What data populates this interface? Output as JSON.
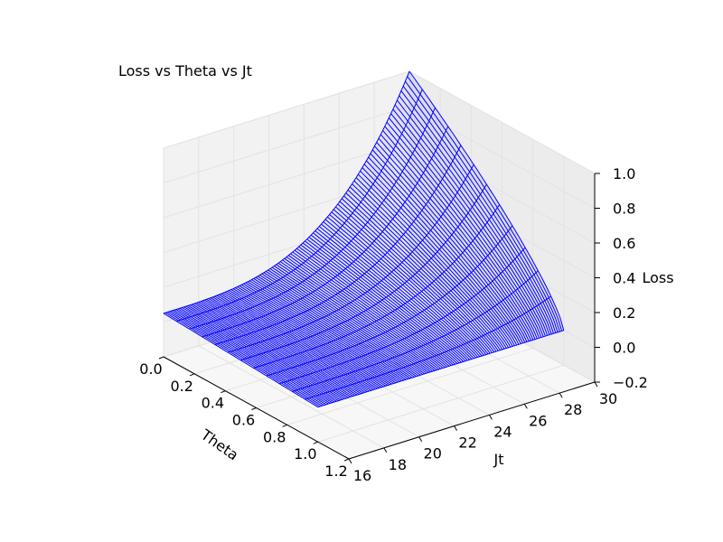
{
  "chart_data": {
    "type": "surface3d",
    "title": "Loss vs Theta vs Jt",
    "xlabel": "Theta",
    "ylabel": "Jt",
    "zlabel": "Loss",
    "xlim": [
      0.0,
      1.2
    ],
    "ylim": [
      16,
      30
    ],
    "zlim": [
      -0.2,
      1.0
    ],
    "x_ticks": [
      "0.0",
      "0.2",
      "0.4",
      "0.6",
      "0.8",
      "1.0",
      "1.2"
    ],
    "y_ticks": [
      "16",
      "18",
      "20",
      "22",
      "24",
      "26",
      "28",
      "30"
    ],
    "z_ticks": [
      "−0.2",
      "0.0",
      "0.2",
      "0.4",
      "0.6",
      "0.8",
      "1.0"
    ],
    "grid": true,
    "surface_color": "#0000ff",
    "pane_color": "#f2f2f2",
    "theta_range": [
      0.0,
      1.0
    ],
    "jt_range": [
      16,
      30
    ],
    "loss_at_theta0_jt16": 0.05,
    "loss_at_theta0_jt30": 1.0,
    "loss_at_theta1_jt30": 0.0,
    "loss_at_theta1_jt16": 0.0
  }
}
